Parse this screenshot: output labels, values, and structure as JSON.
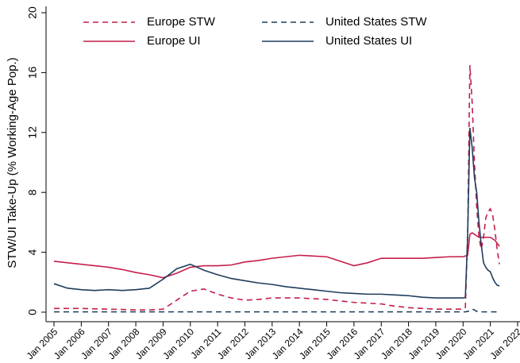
{
  "chart_data": {
    "type": "line",
    "y_label": "STW/UI Take-Up (% Working-Age Pop.)",
    "x": [
      "2005-01",
      "2005-07",
      "2006-01",
      "2006-07",
      "2007-01",
      "2007-07",
      "2008-01",
      "2008-07",
      "2009-01",
      "2009-07",
      "2010-01",
      "2010-07",
      "2011-01",
      "2011-07",
      "2012-01",
      "2012-07",
      "2013-01",
      "2013-07",
      "2014-01",
      "2014-07",
      "2015-01",
      "2015-07",
      "2016-01",
      "2016-07",
      "2017-01",
      "2017-07",
      "2018-01",
      "2018-07",
      "2019-01",
      "2019-07",
      "2020-01",
      "2020-02",
      "2020-03",
      "2020-04",
      "2020-05",
      "2020-06",
      "2020-07",
      "2020-08",
      "2020-09",
      "2020-10",
      "2020-11",
      "2020-12",
      "2021-01",
      "2021-02",
      "2021-03",
      "2021-04",
      "2021-05"
    ],
    "series": [
      {
        "name": "Europe STW",
        "color": "#c41e4a",
        "dash": true,
        "values": [
          0.25,
          0.25,
          0.25,
          0.22,
          0.2,
          0.18,
          0.15,
          0.15,
          0.2,
          0.8,
          1.4,
          1.55,
          1.2,
          0.95,
          0.8,
          0.85,
          0.95,
          0.95,
          0.95,
          0.9,
          0.85,
          0.75,
          0.65,
          0.6,
          0.55,
          0.4,
          0.3,
          0.25,
          0.2,
          0.2,
          0.2,
          0.3,
          5.0,
          16.5,
          14.0,
          10.0,
          7.0,
          5.0,
          4.2,
          5.0,
          6.3,
          6.7,
          6.9,
          6.5,
          5.5,
          4.2,
          3.2
        ]
      },
      {
        "name": "United States STW",
        "color": "#1f3d5c",
        "dash": true,
        "values": [
          0.02,
          0.02,
          0.02,
          0.02,
          0.02,
          0.02,
          0.02,
          0.02,
          0.02,
          0.02,
          0.02,
          0.02,
          0.02,
          0.02,
          0.02,
          0.02,
          0.02,
          0.02,
          0.02,
          0.02,
          0.02,
          0.02,
          0.02,
          0.02,
          0.02,
          0.02,
          0.02,
          0.02,
          0.02,
          0.02,
          0.02,
          0.02,
          0.05,
          0.1,
          0.2,
          0.15,
          0.05,
          0.03,
          0.02,
          0.02,
          0.02,
          0.02,
          0.02,
          0.02,
          0.02,
          0.02,
          0.02
        ]
      },
      {
        "name": "Europe UI",
        "color": "#c41e4a",
        "dash": false,
        "values": [
          3.4,
          3.3,
          3.2,
          3.1,
          3.0,
          2.85,
          2.65,
          2.5,
          2.3,
          2.6,
          3.0,
          3.1,
          3.1,
          3.15,
          3.35,
          3.45,
          3.6,
          3.7,
          3.8,
          3.75,
          3.7,
          3.4,
          3.1,
          3.3,
          3.6,
          3.6,
          3.6,
          3.6,
          3.65,
          3.7,
          3.7,
          3.75,
          3.8,
          5.2,
          5.3,
          5.2,
          5.1,
          5.0,
          5.0,
          5.0,
          5.0,
          5.0,
          5.0,
          4.9,
          4.8,
          4.6,
          4.4
        ]
      },
      {
        "name": "United States UI",
        "color": "#1f3d5c",
        "dash": false,
        "values": [
          1.9,
          1.6,
          1.5,
          1.45,
          1.5,
          1.45,
          1.5,
          1.6,
          2.2,
          2.9,
          3.2,
          2.8,
          2.5,
          2.25,
          2.1,
          1.95,
          1.85,
          1.7,
          1.6,
          1.5,
          1.4,
          1.3,
          1.25,
          1.2,
          1.2,
          1.15,
          1.1,
          1.0,
          0.95,
          0.95,
          0.95,
          1.0,
          5.0,
          12.3,
          11.0,
          9.0,
          8.0,
          6.0,
          4.5,
          3.3,
          3.0,
          2.8,
          2.7,
          2.3,
          2.0,
          1.8,
          1.75
        ]
      }
    ],
    "xlim": [
      "2005-01",
      "2022-01"
    ],
    "xticks": [
      {
        "value": "2005-01",
        "label": "Jan 2005"
      },
      {
        "value": "2006-01",
        "label": "Jan 2006"
      },
      {
        "value": "2007-01",
        "label": "Jan 2007"
      },
      {
        "value": "2008-01",
        "label": "Jan 2008"
      },
      {
        "value": "2009-01",
        "label": "Jan 2009"
      },
      {
        "value": "2010-01",
        "label": "Jan 2010"
      },
      {
        "value": "2011-01",
        "label": "Jan 2011"
      },
      {
        "value": "2012-01",
        "label": "Jan 2012"
      },
      {
        "value": "2013-01",
        "label": "Jan 2013"
      },
      {
        "value": "2014-01",
        "label": "Jan 2014"
      },
      {
        "value": "2015-01",
        "label": "Jan 2015"
      },
      {
        "value": "2016-01",
        "label": "Jan 2016"
      },
      {
        "value": "2017-01",
        "label": "Jan 2017"
      },
      {
        "value": "2018-01",
        "label": "Jan 2018"
      },
      {
        "value": "2019-01",
        "label": "Jan 2019"
      },
      {
        "value": "2020-01",
        "label": "Jan 2020"
      },
      {
        "value": "2021-01",
        "label": "Jan 2021"
      },
      {
        "value": "2022-01",
        "label": "Jan 2022"
      }
    ],
    "ylim": [
      0,
      20
    ],
    "yticks": [
      0,
      4,
      8,
      12,
      16,
      20
    ]
  }
}
